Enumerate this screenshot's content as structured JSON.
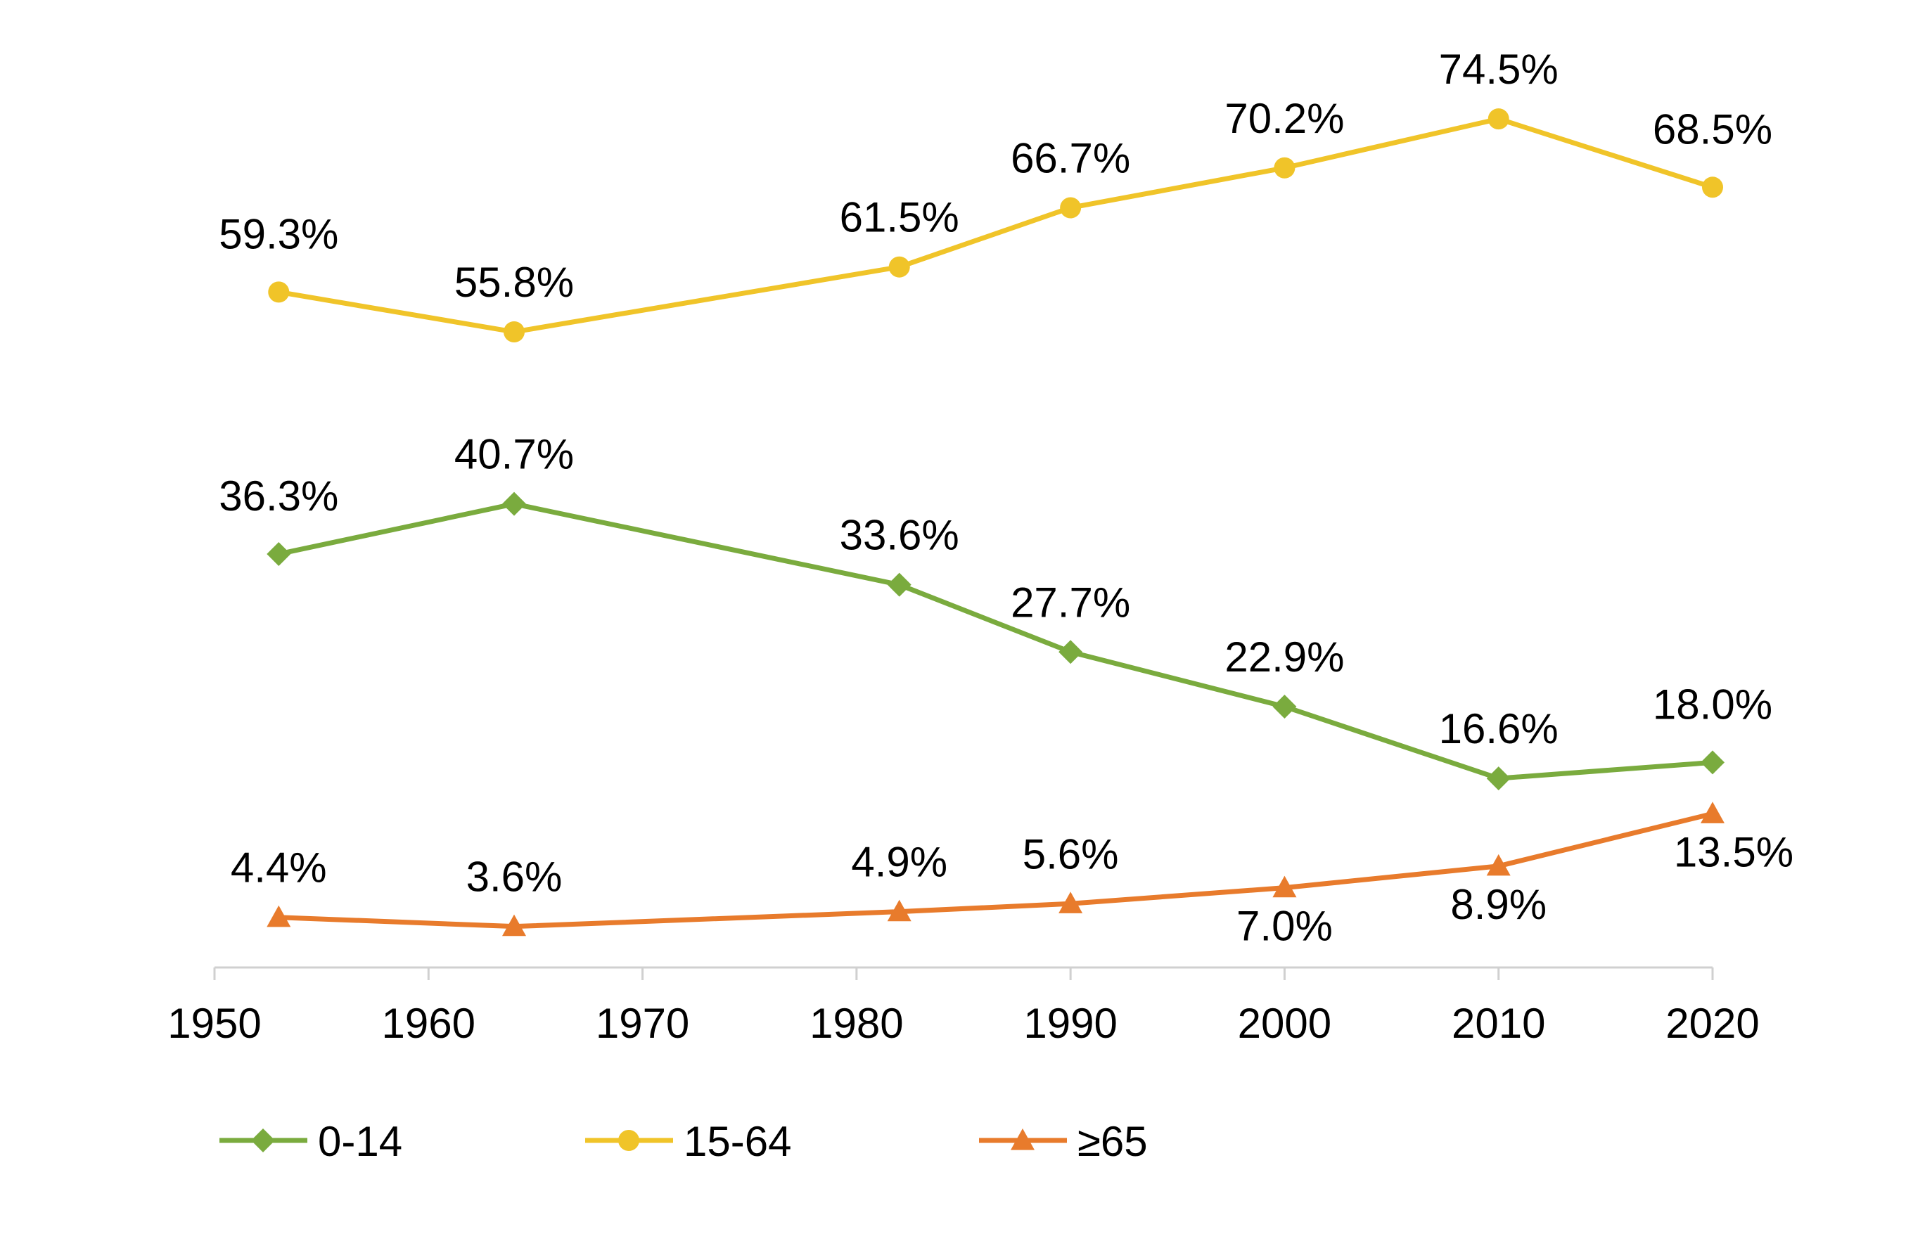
{
  "chart_data": {
    "type": "line",
    "x_ticks": [
      "1950",
      "1960",
      "1970",
      "1980",
      "1990",
      "2000",
      "2010",
      "2020"
    ],
    "xlim": [
      1950,
      2020
    ],
    "ylim": [
      0,
      80
    ],
    "grid": false,
    "legend_position": "bottom-left",
    "series": [
      {
        "name": "0-14",
        "color": "#7aab3e",
        "marker": "diamond",
        "x": [
          1953,
          1964,
          1982,
          1990,
          2000,
          2010,
          2020
        ],
        "values": [
          36.3,
          40.7,
          33.6,
          27.7,
          22.9,
          16.6,
          18.0
        ],
        "labels": [
          "36.3%",
          "40.7%",
          "33.6%",
          "27.7%",
          "22.9%",
          "16.6%",
          "18.0%"
        ]
      },
      {
        "name": "15-64",
        "color": "#f0c429",
        "marker": "circle",
        "x": [
          1953,
          1964,
          1982,
          1990,
          2000,
          2010,
          2020
        ],
        "values": [
          59.3,
          55.8,
          61.5,
          66.7,
          70.2,
          74.5,
          68.5
        ],
        "labels": [
          "59.3%",
          "55.8%",
          "61.5%",
          "66.7%",
          "70.2%",
          "74.5%",
          "68.5%"
        ]
      },
      {
        "name": "≥65",
        "color": "#e87b2c",
        "marker": "triangle",
        "x": [
          1953,
          1964,
          1982,
          1990,
          2000,
          2010,
          2020
        ],
        "values": [
          4.4,
          3.6,
          4.9,
          5.6,
          7.0,
          8.9,
          13.5
        ],
        "labels": [
          "4.4%",
          "3.6%",
          "4.9%",
          "5.6%",
          "7.0%",
          "8.9%",
          "13.5%"
        ],
        "label_side": [
          "above",
          "above",
          "above",
          "above",
          "below",
          "below",
          "below"
        ]
      }
    ]
  }
}
